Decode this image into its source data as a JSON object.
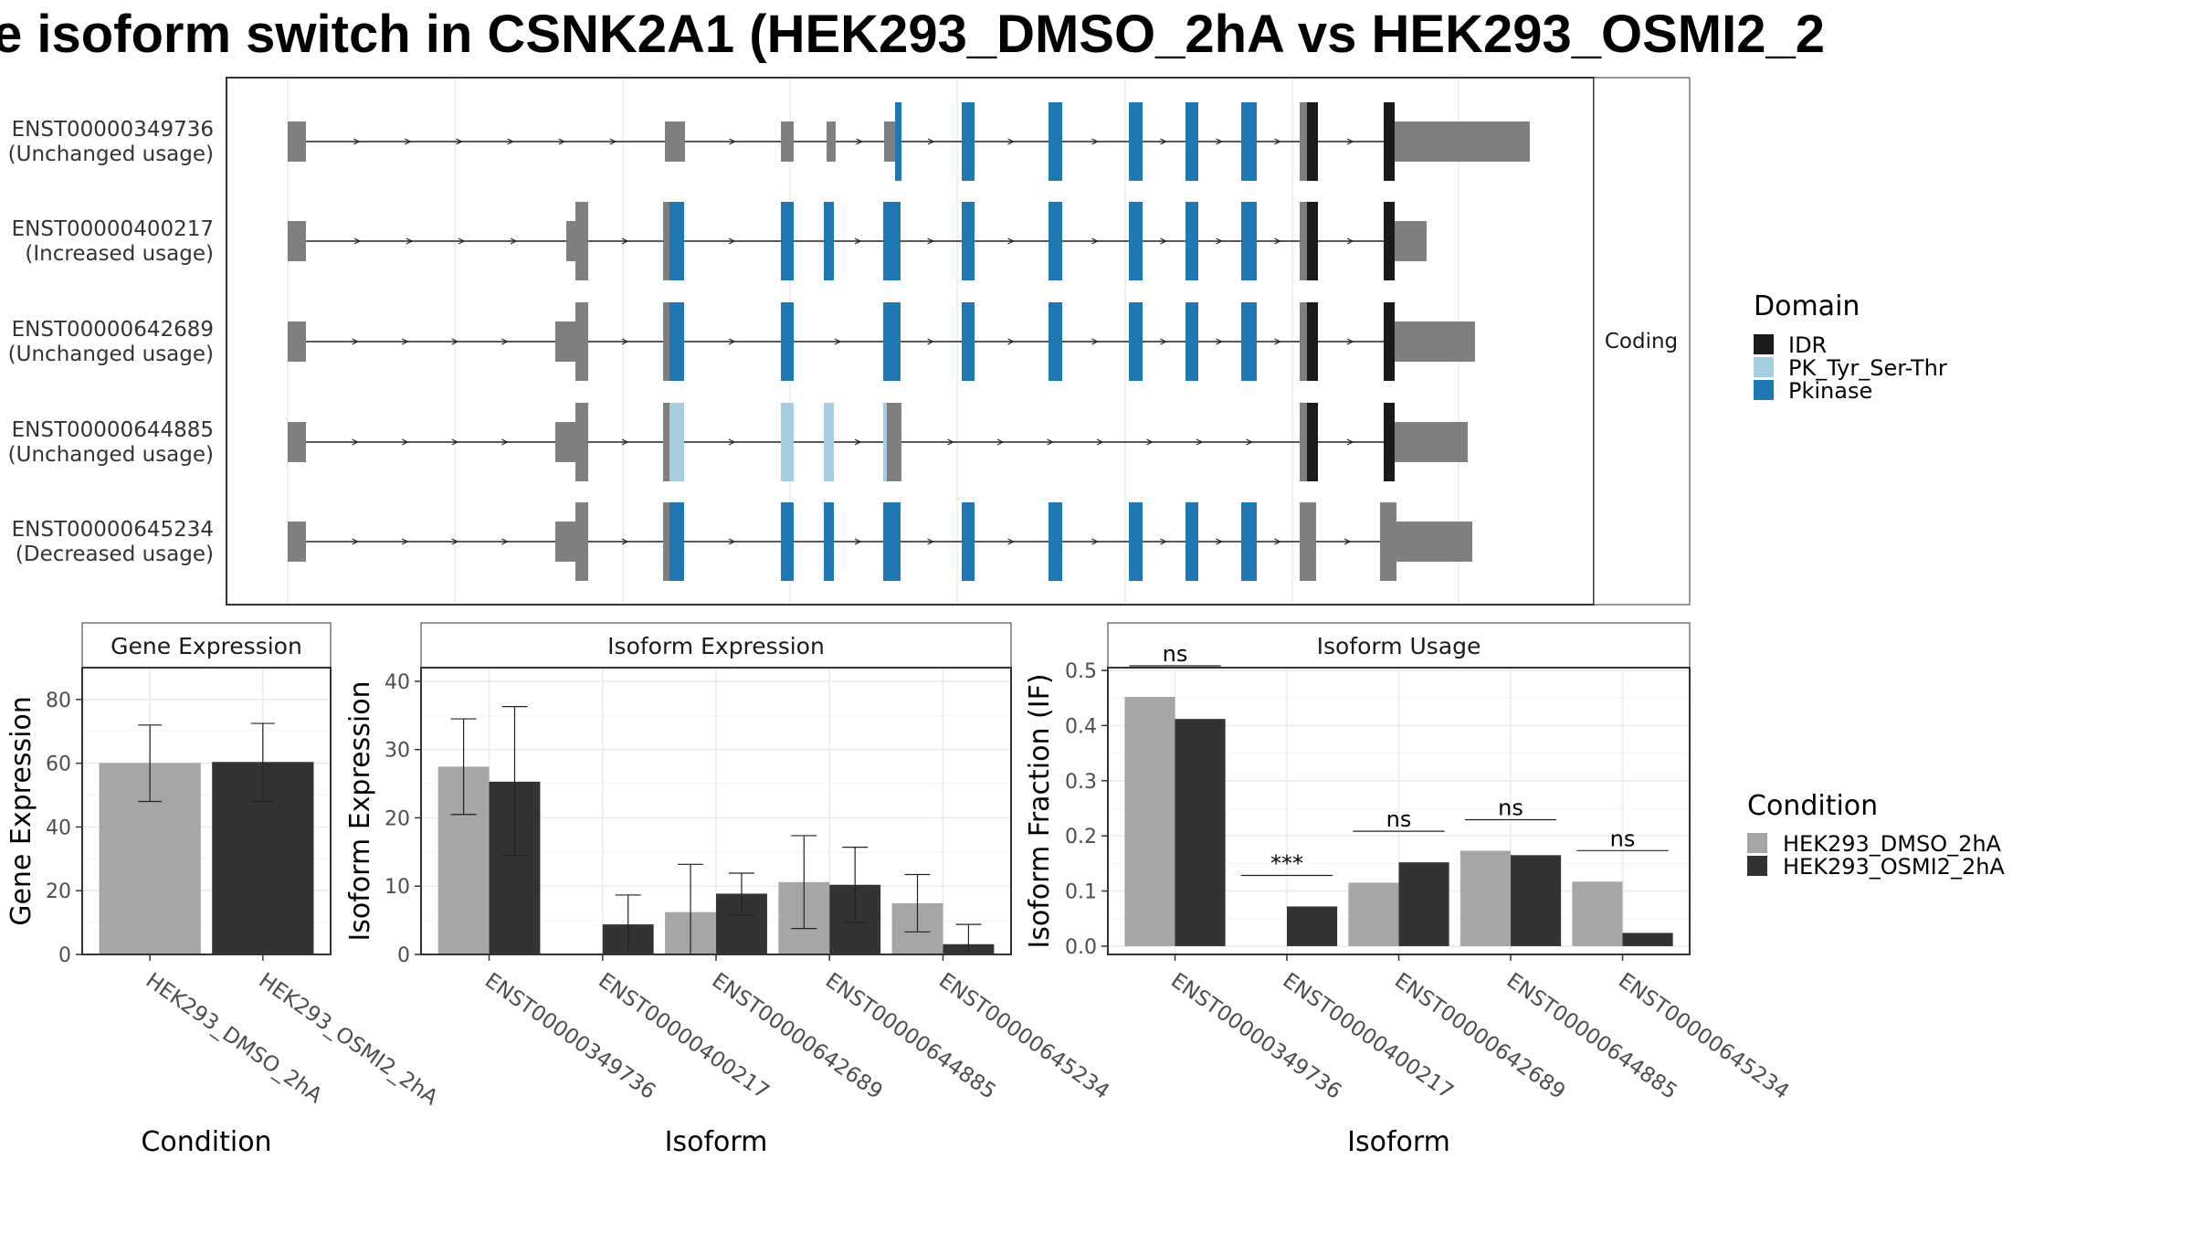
{
  "title": "e isoform switch in CSNK2A1 (HEK293_DMSO_2hA vs HEK293_OSMI2_2",
  "colors": {
    "utr": "#7f7f7f",
    "idr": "#1a1a1a",
    "pk_tyr": "#a6cee3",
    "pkinase": "#1f78b4",
    "dmso": "#a6a6a6",
    "osmi2": "#333333"
  },
  "structure_panel": {
    "facet_label": "Coding",
    "transcripts": [
      {
        "id": "ENST00000349736",
        "usage": "(Unchanged usage)"
      },
      {
        "id": "ENST00000400217",
        "usage": "(Increased usage)"
      },
      {
        "id": "ENST00000642689",
        "usage": "(Unchanged usage)"
      },
      {
        "id": "ENST00000644885",
        "usage": "(Unchanged usage)"
      },
      {
        "id": "ENST00000645234",
        "usage": "(Decreased usage)"
      }
    ]
  },
  "domain_legend": {
    "title": "Domain",
    "items": [
      {
        "label": "IDR",
        "color": "#1a1a1a"
      },
      {
        "label": "PK_Tyr_Ser-Thr",
        "color": "#a6cee3"
      },
      {
        "label": "Pkinase",
        "color": "#1f78b4"
      }
    ]
  },
  "condition_legend": {
    "title": "Condition",
    "items": [
      {
        "label": "HEK293_DMSO_2hA",
        "color": "#a6a6a6"
      },
      {
        "label": "HEK293_OSMI2_2hA",
        "color": "#333333"
      }
    ]
  },
  "chart_data": [
    {
      "type": "bar",
      "title": "Gene Expression",
      "xlabel": "Condition",
      "ylabel": "Gene Expression",
      "ylim": [
        0,
        90
      ],
      "yticks": [
        0,
        20,
        40,
        60,
        80
      ],
      "categories": [
        "HEK293_DMSO_2hA",
        "HEK293_OSMI2_2hA"
      ],
      "values": [
        60.1,
        60.4
      ],
      "errors": [
        [
          48,
          72
        ],
        [
          48,
          72.5
        ]
      ],
      "colors": [
        "#a6a6a6",
        "#333333"
      ]
    },
    {
      "type": "bar",
      "title": "Isoform Expression",
      "xlabel": "Isoform",
      "ylabel": "Isoform Expression",
      "ylim": [
        0,
        42
      ],
      "yticks": [
        0,
        10,
        20,
        30,
        40
      ],
      "categories": [
        "ENST00000349736",
        "ENST00000400217",
        "ENST00000642689",
        "ENST00000644885",
        "ENST00000645234"
      ],
      "series": [
        {
          "name": "HEK293_DMSO_2hA",
          "values": [
            27.5,
            0,
            6.2,
            10.6,
            7.5
          ],
          "errors": [
            [
              20.5,
              34.5
            ],
            [
              0,
              0
            ],
            [
              0,
              13.2
            ],
            [
              3.8,
              17.4
            ],
            [
              3.3,
              11.7
            ]
          ]
        },
        {
          "name": "HEK293_OSMI2_2hA",
          "values": [
            25.3,
            4.4,
            8.9,
            10.2,
            1.5
          ],
          "errors": [
            [
              14.5,
              36.3
            ],
            [
              0,
              8.7
            ],
            [
              5.8,
              11.9
            ],
            [
              4.7,
              15.7
            ],
            [
              0,
              4.4
            ]
          ]
        }
      ]
    },
    {
      "type": "bar",
      "title": "Isoform Usage",
      "xlabel": "Isoform",
      "ylabel": "Isoform Fraction (IF)",
      "ylim": [
        -0.015,
        0.505
      ],
      "yticks": [
        0.0,
        0.1,
        0.2,
        0.3,
        0.4,
        0.5
      ],
      "ytick_labels": [
        "0.0",
        "0.1",
        "0.2",
        "0.3",
        "0.4",
        "0.5"
      ],
      "categories": [
        "ENST00000349736",
        "ENST00000400217",
        "ENST00000642689",
        "ENST00000644885",
        "ENST00000645234"
      ],
      "series": [
        {
          "name": "HEK293_DMSO_2hA",
          "values": [
            0.452,
            0.0,
            0.115,
            0.173,
            0.117
          ]
        },
        {
          "name": "HEK293_OSMI2_2hA",
          "values": [
            0.412,
            0.072,
            0.152,
            0.165,
            0.024
          ]
        }
      ],
      "significance": [
        "ns",
        "***",
        "ns",
        "ns",
        "ns"
      ]
    }
  ]
}
